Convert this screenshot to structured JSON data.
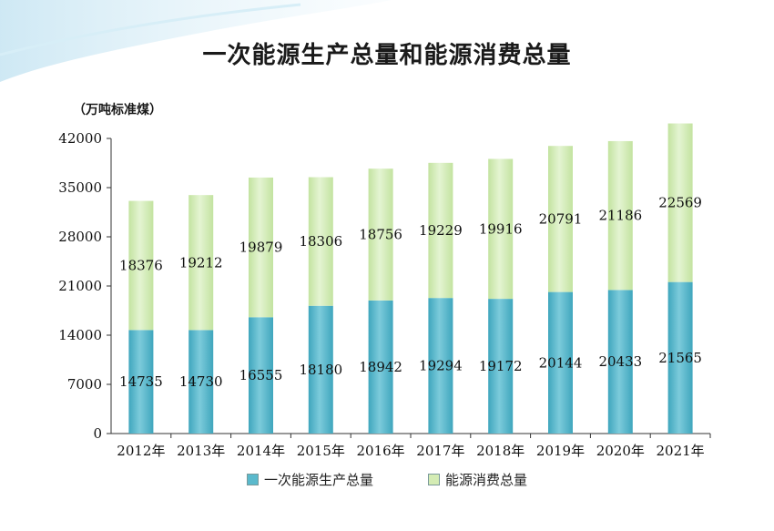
{
  "title": "一次能源生产总量和能源消费总量",
  "unit": "（万吨标准煤）",
  "colors": {
    "production": "#5ab9cc",
    "consumption": "#d4ecb4"
  },
  "chart_data": {
    "type": "bar",
    "stacked": true,
    "categories": [
      "2012年",
      "2013年",
      "2014年",
      "2015年",
      "2016年",
      "2017年",
      "2018年",
      "2019年",
      "2020年",
      "2021年"
    ],
    "series": [
      {
        "name": "一次能源生产总量",
        "values": [
          14735,
          14730,
          16555,
          18180,
          18942,
          19294,
          19172,
          20144,
          20433,
          21565
        ]
      },
      {
        "name": "能源消费总量",
        "values": [
          18376,
          19212,
          19879,
          18306,
          18756,
          19229,
          19916,
          20791,
          21186,
          22569
        ]
      }
    ],
    "ylim": [
      0,
      42000
    ],
    "yticks": [
      0,
      7000,
      14000,
      21000,
      28000,
      35000,
      42000
    ],
    "legend_position": "bottom"
  }
}
